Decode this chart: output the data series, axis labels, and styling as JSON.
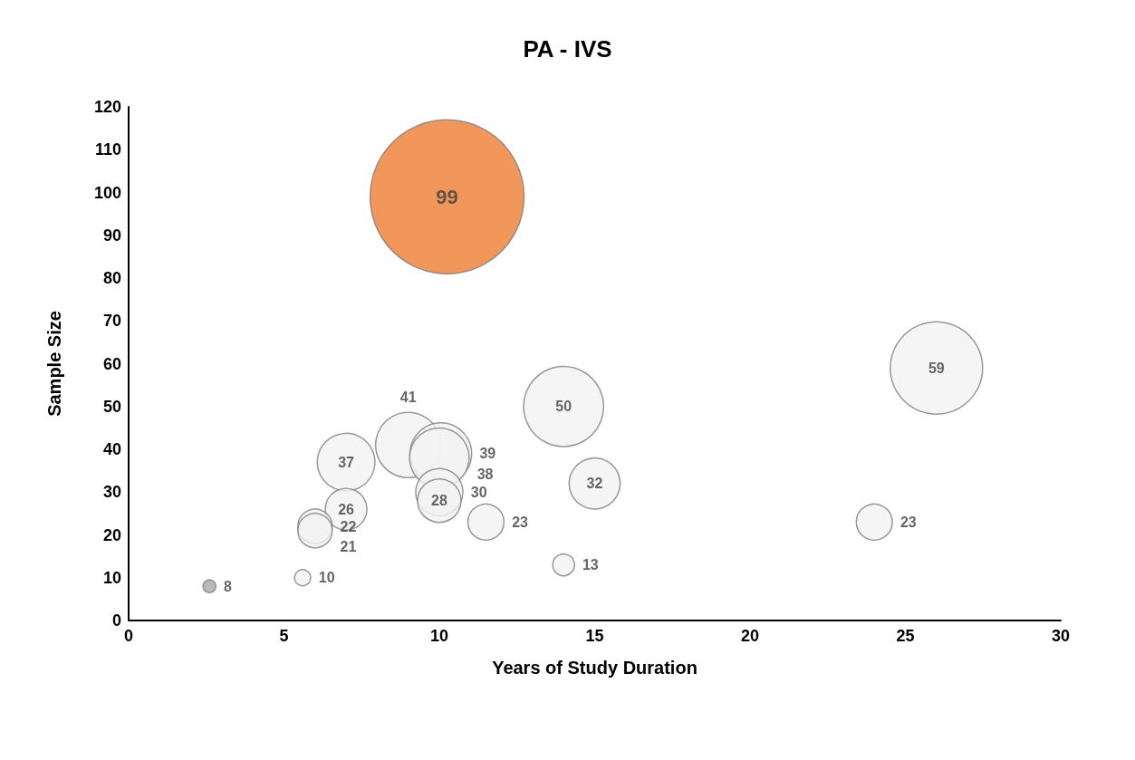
{
  "chart_data": {
    "type": "bubble",
    "title": "PA - IVS",
    "xlabel": "Years of Study Duration",
    "ylabel": "Sample Size",
    "x": [
      10.25,
      26,
      14,
      9,
      10.05,
      10,
      7,
      15,
      10,
      10,
      7,
      11.5,
      24,
      6,
      6,
      14,
      5.6,
      2.6
    ],
    "values": [
      99,
      59,
      50,
      41,
      39,
      38,
      37,
      32,
      30,
      28,
      26,
      23,
      23,
      22,
      21,
      13,
      10,
      8
    ],
    "sizes": [
      1,
      0.36,
      0.27,
      0.18,
      0.16,
      0.15,
      0.14,
      0.11,
      0.094,
      0.08,
      0.073,
      0.055,
      0.055,
      0.05,
      0.05,
      0.02,
      0.011,
      0.007
    ],
    "colors": [
      "#ed7d31",
      "#f2f2f2",
      "#f2f2f2",
      "#f2f2f2",
      "#f2f2f2",
      "#f2f2f2",
      "#f2f2f2",
      "#f2f2f2",
      "#f2f2f2",
      "#f2f2f2",
      "#f2f2f2",
      "#f2f2f2",
      "#f2f2f2",
      "#f2f2f2",
      "#f2f2f2",
      "#f2f2f2",
      "#f2f2f2",
      "#a6a6a6"
    ],
    "xlim": [
      0,
      30
    ],
    "xticks": [
      0,
      5,
      10,
      15,
      20,
      25,
      30
    ],
    "ylim": [
      0,
      120
    ],
    "yticks": [
      0,
      10,
      20,
      30,
      40,
      50,
      60,
      70,
      80,
      90,
      100,
      110,
      120
    ],
    "grid": false,
    "data_labels": true
  }
}
